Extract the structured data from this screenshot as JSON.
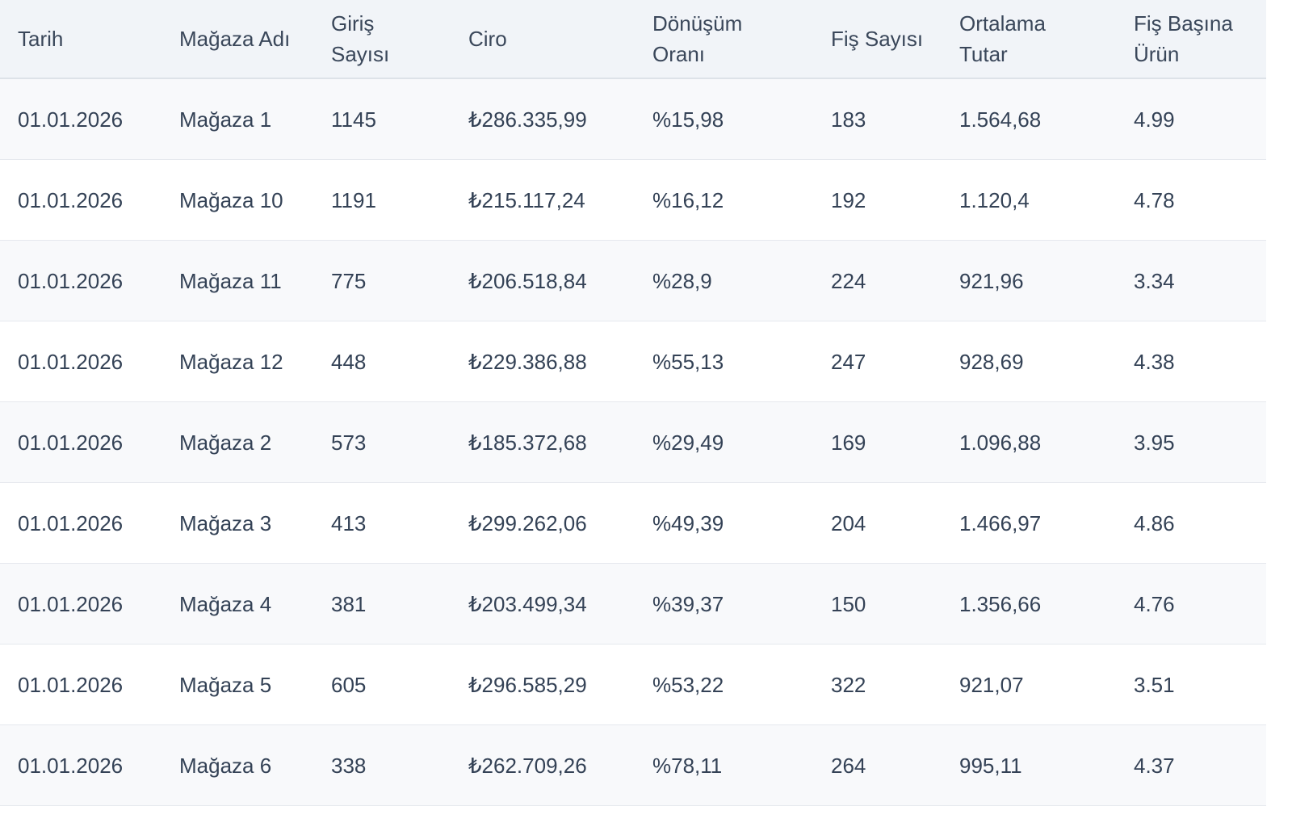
{
  "table": {
    "headers": [
      "Tarih",
      "Mağaza Adı",
      "Giriş Sayısı",
      "Ciro",
      "Dönüşüm Oranı",
      "Fiş Sayısı",
      "Ortalama Tutar",
      "Fiş Başına Ürün"
    ],
    "rows": [
      [
        "01.01.2026",
        "Mağaza 1",
        "1145",
        "₺286.335,99",
        "%15,98",
        "183",
        "1.564,68",
        "4.99"
      ],
      [
        "01.01.2026",
        "Mağaza 10",
        "1191",
        "₺215.117,24",
        "%16,12",
        "192",
        "1.120,4",
        "4.78"
      ],
      [
        "01.01.2026",
        "Mağaza 11",
        "775",
        "₺206.518,84",
        "%28,9",
        "224",
        "921,96",
        "3.34"
      ],
      [
        "01.01.2026",
        "Mağaza 12",
        "448",
        "₺229.386,88",
        "%55,13",
        "247",
        "928,69",
        "4.38"
      ],
      [
        "01.01.2026",
        "Mağaza 2",
        "573",
        "₺185.372,68",
        "%29,49",
        "169",
        "1.096,88",
        "3.95"
      ],
      [
        "01.01.2026",
        "Mağaza 3",
        "413",
        "₺299.262,06",
        "%49,39",
        "204",
        "1.466,97",
        "4.86"
      ],
      [
        "01.01.2026",
        "Mağaza 4",
        "381",
        "₺203.499,34",
        "%39,37",
        "150",
        "1.356,66",
        "4.76"
      ],
      [
        "01.01.2026",
        "Mağaza 5",
        "605",
        "₺296.585,29",
        "%53,22",
        "322",
        "921,07",
        "3.51"
      ],
      [
        "01.01.2026",
        "Mağaza 6",
        "338",
        "₺262.709,26",
        "%78,11",
        "264",
        "995,11",
        "4.37"
      ]
    ]
  }
}
